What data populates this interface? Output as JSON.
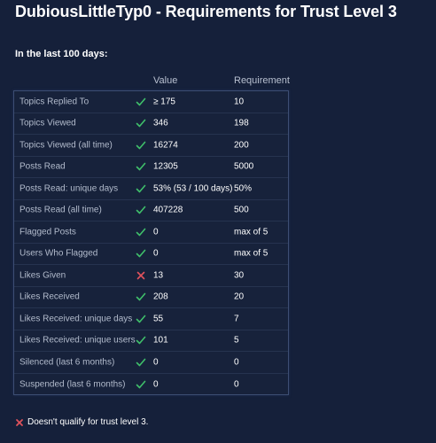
{
  "title": "DubiousLittleTyp0 - Requirements for Trust Level 3",
  "period_label": "In the last 100 days:",
  "columns": {
    "value": "Value",
    "requirement": "Requirement"
  },
  "rows": [
    {
      "label": "Topics Replied To",
      "status": "pass",
      "value": "≥ 175",
      "requirement": "10"
    },
    {
      "label": "Topics Viewed",
      "status": "pass",
      "value": "346",
      "requirement": "198"
    },
    {
      "label": "Topics Viewed (all time)",
      "status": "pass",
      "value": "16274",
      "requirement": "200"
    },
    {
      "label": "Posts Read",
      "status": "pass",
      "value": "12305",
      "requirement": "5000"
    },
    {
      "label": "Posts Read: unique days",
      "status": "pass",
      "value": "53% (53 / 100 days)",
      "requirement": "50%"
    },
    {
      "label": "Posts Read (all time)",
      "status": "pass",
      "value": "407228",
      "requirement": "500"
    },
    {
      "label": "Flagged Posts",
      "status": "pass",
      "value": "0",
      "requirement": "max of 5"
    },
    {
      "label": "Users Who Flagged",
      "status": "pass",
      "value": "0",
      "requirement": "max of 5"
    },
    {
      "label": "Likes Given",
      "status": "fail",
      "value": "13",
      "requirement": "30"
    },
    {
      "label": "Likes Received",
      "status": "pass",
      "value": "208",
      "requirement": "20"
    },
    {
      "label": "Likes Received: unique days",
      "status": "pass",
      "value": "55",
      "requirement": "7"
    },
    {
      "label": "Likes Received: unique users",
      "status": "pass",
      "value": "101",
      "requirement": "5"
    },
    {
      "label": "Silenced (last 6 months)",
      "status": "pass",
      "value": "0",
      "requirement": "0"
    },
    {
      "label": "Suspended (last 6 months)",
      "status": "pass",
      "value": "0",
      "requirement": "0"
    }
  ],
  "verdict": {
    "status": "fail",
    "text": "Doesn't qualify for trust level 3."
  },
  "colors": {
    "background": "#15203a",
    "pass": "#3fbf6a",
    "fail": "#e0525c",
    "border": "#3d4e73"
  },
  "icons": {
    "pass": "check-icon",
    "fail": "cross-icon"
  }
}
